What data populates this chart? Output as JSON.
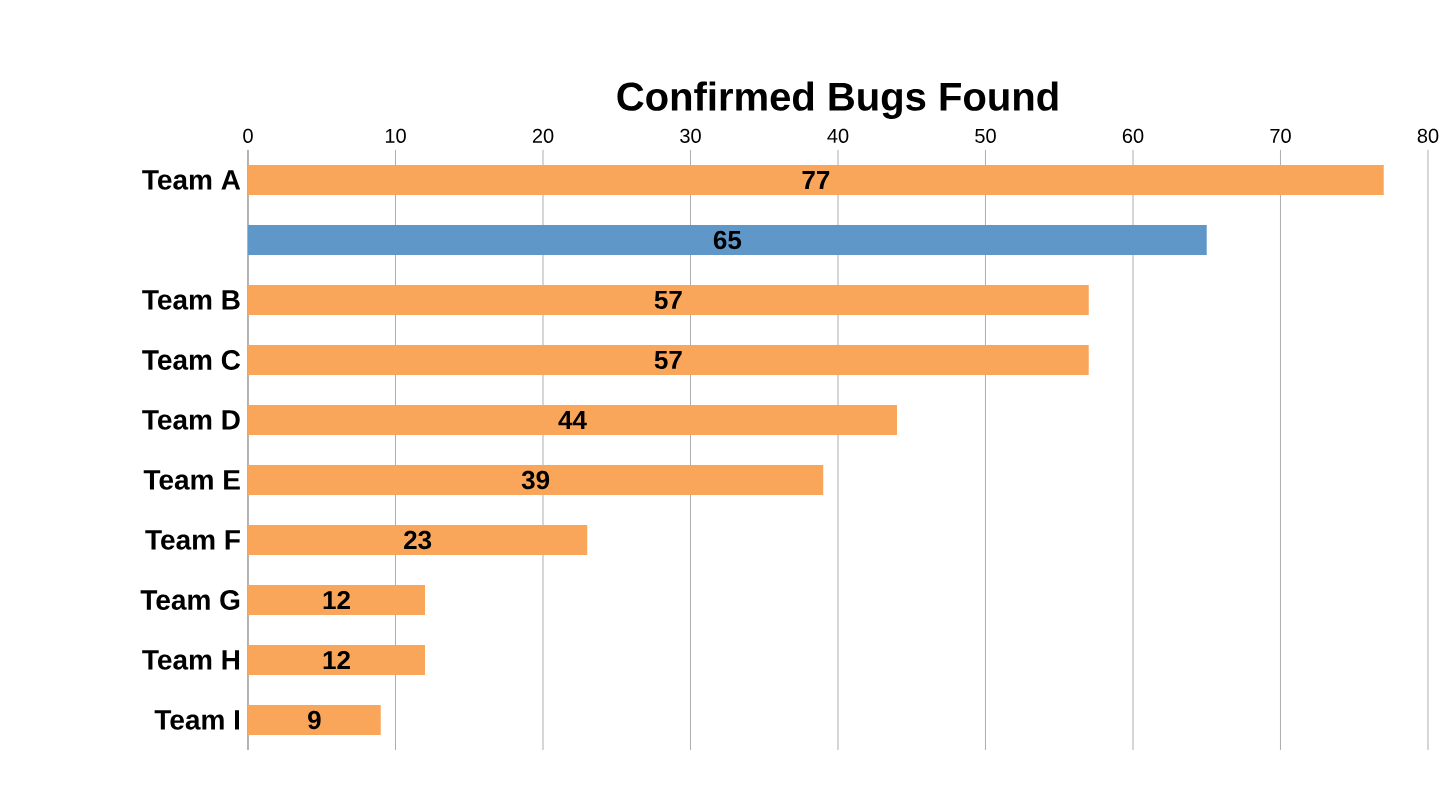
{
  "chart_data": {
    "type": "bar",
    "orientation": "horizontal",
    "title": "Confirmed Bugs Found",
    "categories": [
      "Team A",
      null,
      "Team B",
      "Team C",
      "Team D",
      "Team E",
      "Team F",
      "Team G",
      "Team H",
      "Team I"
    ],
    "values": [
      77,
      65,
      57,
      57,
      44,
      39,
      23,
      12,
      12,
      9
    ],
    "colors": [
      "#f9a65a",
      "#6097c9",
      "#f9a65a",
      "#f9a65a",
      "#f9a65a",
      "#f9a65a",
      "#f9a65a",
      "#f9a65a",
      "#f9a65a",
      "#f9a65a"
    ],
    "xlim": [
      0,
      80
    ],
    "xticks": [
      0,
      10,
      20,
      30,
      40,
      50,
      60,
      70,
      80
    ],
    "grid": "x",
    "data_labels": true
  }
}
